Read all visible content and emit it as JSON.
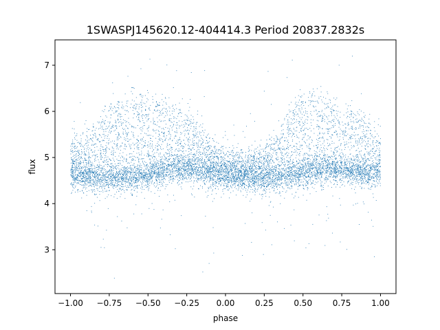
{
  "chart_data": {
    "type": "scatter",
    "title": "1SWASPJ145620.12-404414.3 Period 20837.2832s",
    "xlabel": "phase",
    "ylabel": "flux",
    "xlim": [
      -1.1,
      1.1
    ],
    "ylim": [
      2.05,
      7.55
    ],
    "x_ticks": [
      -1.0,
      -0.75,
      -0.5,
      -0.25,
      0.0,
      0.25,
      0.5,
      0.75,
      1.0
    ],
    "x_tick_labels": [
      "−1.00",
      "−0.75",
      "−0.50",
      "−0.25",
      "0.00",
      "0.25",
      "0.50",
      "0.75",
      "1.00"
    ],
    "y_ticks": [
      3,
      4,
      5,
      6,
      7
    ],
    "y_tick_labels": [
      "3",
      "4",
      "5",
      "6",
      "7"
    ],
    "grid": false,
    "marker_color": "#1f77b4",
    "series": [
      {
        "phase": [
          -1.0,
          -0.95,
          -0.9,
          -0.85,
          -0.8,
          -0.75,
          -0.7,
          -0.65,
          -0.6,
          -0.55,
          -0.5,
          -0.45,
          -0.4,
          -0.35,
          -0.3,
          -0.25,
          -0.2,
          -0.15,
          -0.1,
          -0.05,
          0.0,
          0.05,
          0.1,
          0.15,
          0.2,
          0.25,
          0.3,
          0.35,
          0.4,
          0.45,
          0.5,
          0.55,
          0.6,
          0.65,
          0.7,
          0.75,
          0.8,
          0.85,
          0.9,
          0.95,
          1.0
        ],
        "baseline_flux": [
          4.65,
          4.63,
          4.6,
          4.58,
          4.57,
          4.56,
          4.56,
          4.57,
          4.58,
          4.6,
          4.63,
          4.66,
          4.69,
          4.72,
          4.74,
          4.75,
          4.74,
          4.71,
          4.67,
          4.63,
          4.62,
          4.6,
          4.58,
          4.57,
          4.56,
          4.56,
          4.57,
          4.58,
          4.6,
          4.63,
          4.66,
          4.69,
          4.72,
          4.74,
          4.75,
          4.74,
          4.72,
          4.7,
          4.68,
          4.66,
          4.65
        ],
        "upper_flux": [
          4.9,
          5.0,
          5.1,
          5.3,
          5.5,
          5.7,
          5.9,
          6.0,
          6.05,
          6.0,
          5.9,
          5.85,
          5.8,
          5.75,
          5.7,
          5.6,
          5.45,
          5.25,
          5.0,
          4.85,
          4.8,
          4.75,
          4.7,
          4.7,
          4.75,
          4.85,
          5.0,
          5.3,
          5.6,
          5.85,
          6.0,
          6.05,
          6.0,
          5.9,
          5.8,
          5.75,
          5.7,
          5.6,
          5.5,
          5.3,
          5.1
        ]
      }
    ]
  }
}
